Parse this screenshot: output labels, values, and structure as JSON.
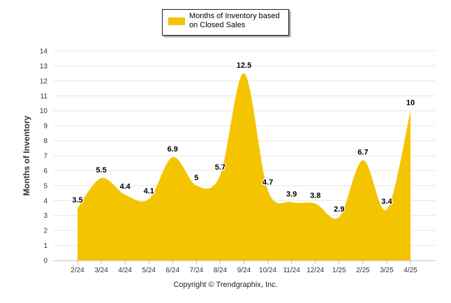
{
  "chart_data": {
    "type": "area",
    "categories": [
      "2/24",
      "3/24",
      "4/24",
      "5/24",
      "6/24",
      "7/24",
      "8/24",
      "9/24",
      "10/24",
      "11/24",
      "12/24",
      "1/25",
      "2/25",
      "3/25",
      "4/25"
    ],
    "series": [
      {
        "name": "Months of Inventory based on Closed Sales",
        "values": [
          3.5,
          5.5,
          4.4,
          4.1,
          6.9,
          5,
          5.7,
          12.5,
          4.7,
          3.9,
          3.8,
          2.9,
          6.7,
          3.4,
          10
        ],
        "data_labels": [
          "3.5",
          "5.5",
          "4.4",
          "4.1",
          "6.9",
          "5",
          "5.7",
          "12.5",
          "4.7",
          "3.9",
          "3.8",
          "2.9",
          "6.7",
          "3.4",
          "10"
        ]
      }
    ],
    "ylabel": "Months of Inventory",
    "ylim": [
      0,
      14
    ],
    "yticks": [
      "0",
      "1",
      "2",
      "3",
      "4",
      "5",
      "6",
      "7",
      "8",
      "9",
      "10",
      "11",
      "12",
      "13",
      "14"
    ],
    "grid": true,
    "legend_position": "top-center",
    "series_color": "#F5C400",
    "grid_color": "#e6e6e6",
    "footer": "Copyright © Trendgraphix, Inc."
  }
}
